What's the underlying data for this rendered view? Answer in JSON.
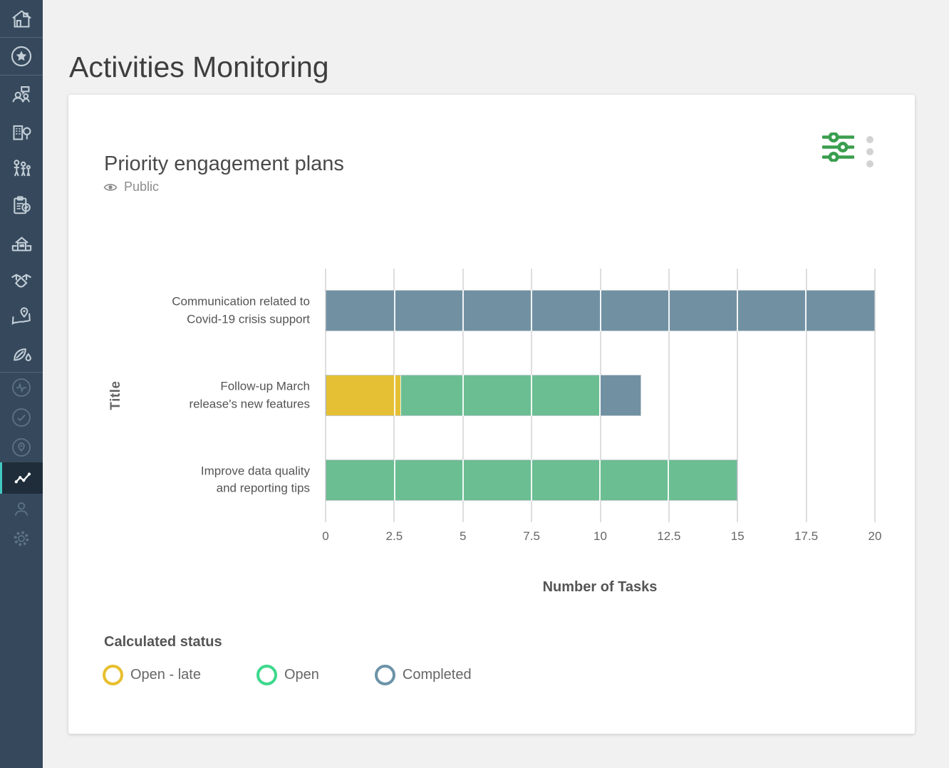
{
  "header": {
    "title": "Activities Monitoring"
  },
  "sidebar": {
    "icons": [
      "home",
      "star",
      "community-discussion",
      "organization",
      "family",
      "clipboard-check",
      "school",
      "handshake",
      "map-location",
      "environment",
      "activity-pulse",
      "tasks-check",
      "location",
      "activities-chart",
      "profile",
      "settings"
    ],
    "active_icon": "activities-chart",
    "accent_color": "#41c8c0",
    "background_color": "#36495c"
  },
  "card": {
    "title": "Priority engagement plans",
    "visibility": "Public",
    "icons": {
      "visibility": "eye-icon",
      "filter": "sliders-icon",
      "menu": "kebab-menu-icon"
    },
    "filter_icon_color": "#3a9e4f"
  },
  "chart_data": {
    "type": "bar",
    "orientation": "horizontal",
    "stacked": true,
    "categories": [
      "Communication related to\nCovid-19 crisis support",
      "Follow-up March\nrelease's new features",
      "Improve data quality\nand reporting tips"
    ],
    "series": [
      {
        "name": "Open - late",
        "color": "#E6C034",
        "values": [
          0,
          2.7,
          0
        ]
      },
      {
        "name": "Open",
        "color": "#6BBE92",
        "values": [
          0,
          7.3,
          15
        ]
      },
      {
        "name": "Completed",
        "color": "#7191A3",
        "values": [
          20,
          1.5,
          0
        ]
      }
    ],
    "xlabel": "Number of Tasks",
    "ylabel": "Title",
    "xlim": [
      0,
      20
    ],
    "xticks": [
      0,
      2.5,
      5,
      7.5,
      10,
      12.5,
      15,
      17.5,
      20
    ],
    "grid": true,
    "legend_title": "Calculated status",
    "legend": [
      {
        "label": "Open - late",
        "color": "#E7BF2D"
      },
      {
        "label": "Open",
        "color": "#3DD98C"
      },
      {
        "label": "Completed",
        "color": "#6C93A9"
      }
    ]
  }
}
